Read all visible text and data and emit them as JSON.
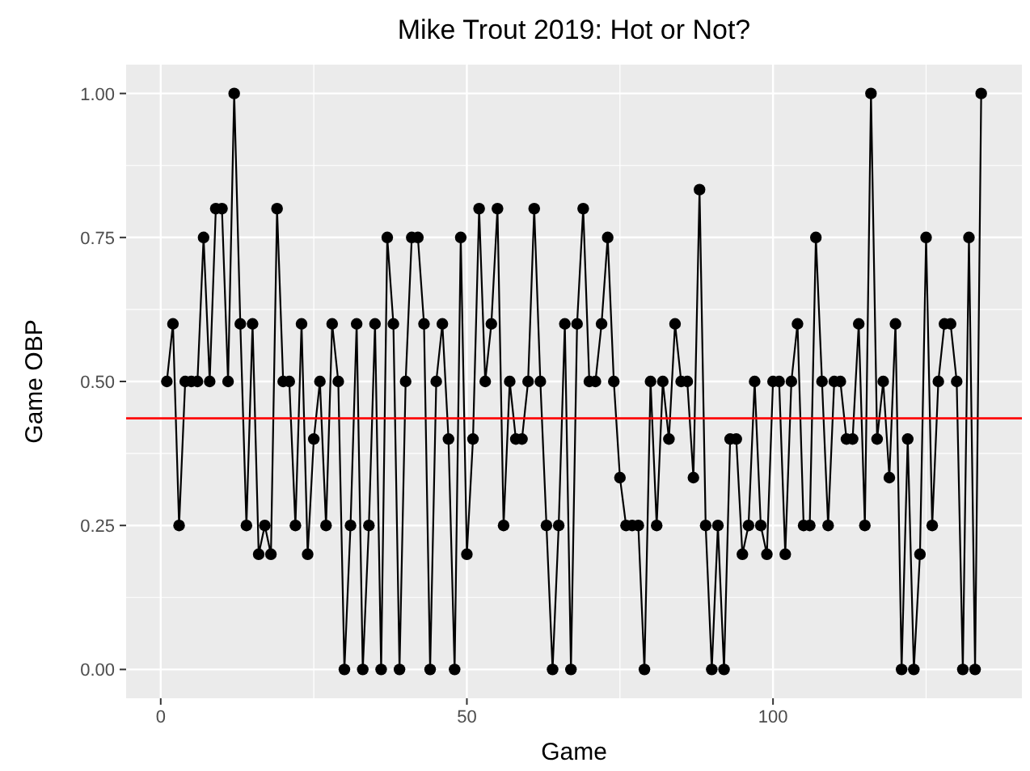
{
  "chart_data": {
    "type": "line",
    "title": "Mike Trout 2019: Hot or Not?",
    "xlabel": "Game",
    "ylabel": "Game OBP",
    "x": [
      1,
      2,
      3,
      4,
      5,
      6,
      7,
      8,
      9,
      10,
      11,
      12,
      13,
      14,
      15,
      16,
      17,
      18,
      19,
      20,
      21,
      22,
      23,
      24,
      25,
      26,
      27,
      28,
      29,
      30,
      31,
      32,
      33,
      34,
      35,
      36,
      37,
      38,
      39,
      40,
      41,
      42,
      43,
      44,
      45,
      46,
      47,
      48,
      49,
      50,
      51,
      52,
      53,
      54,
      55,
      56,
      57,
      58,
      59,
      60,
      61,
      62,
      63,
      64,
      65,
      66,
      67,
      68,
      69,
      70,
      71,
      72,
      73,
      74,
      75,
      76,
      77,
      78,
      79,
      80,
      81,
      82,
      83,
      84,
      85,
      86,
      87,
      88,
      89,
      90,
      91,
      92,
      93,
      94,
      95,
      96,
      97,
      98,
      99,
      100,
      101,
      102,
      103,
      104,
      105,
      106,
      107,
      108,
      109,
      110,
      111,
      112,
      113,
      114,
      115,
      116,
      117,
      118,
      119,
      120,
      121,
      122,
      123,
      124,
      125,
      126,
      127,
      128,
      129,
      130,
      131,
      132,
      133,
      134
    ],
    "series": [
      {
        "color": "#000000",
        "values": [
          0.5,
          0.6,
          0.25,
          0.5,
          0.5,
          0.5,
          0.75,
          0.5,
          0.8,
          0.8,
          0.5,
          1,
          0.6,
          0.25,
          0.6,
          0.2,
          0.25,
          0.2,
          0.8,
          0.5,
          0.5,
          0.25,
          0.6,
          0.2,
          0.4,
          0.5,
          0.25,
          0.6,
          0.5,
          0,
          0.25,
          0.6,
          0,
          0.25,
          0.6,
          0,
          0.75,
          0.6,
          0,
          0.5,
          0.75,
          0.75,
          0.6,
          0,
          0.5,
          0.6,
          0.4,
          0,
          0.75,
          0.2,
          0.4,
          0.8,
          0.5,
          0.6,
          0.8,
          0.25,
          0.5,
          0.4,
          0.4,
          0.5,
          0.8,
          0.5,
          0.25,
          0,
          0.25,
          0.6,
          0,
          0.6,
          0.8,
          0.5,
          0.5,
          0.6,
          0.75,
          0.5,
          0.333,
          0.25,
          0.25,
          0.25,
          0,
          0.5,
          0.25,
          0.5,
          0.4,
          0.6,
          0.5,
          0.5,
          0.333,
          0.833,
          0.25,
          0,
          0.25,
          0,
          0.4,
          0.4,
          0.2,
          0.25,
          0.5,
          0.25,
          0.2,
          0.5,
          0.5,
          0.2,
          0.5,
          0.6,
          0.25,
          0.25,
          0.75,
          0.5,
          0.25,
          0.5,
          0.5,
          0.4,
          0.4,
          0.6,
          0.25,
          1,
          0.4,
          0.5,
          0.333,
          0.6,
          0,
          0.4,
          0,
          0.2,
          0.75,
          0.25,
          0.5,
          0.6,
          0.6,
          0.5,
          0,
          0.75,
          0,
          1
        ]
      }
    ],
    "xlim": [
      -5.65,
      140.65
    ],
    "xticks": [
      0,
      50,
      100
    ],
    "ylim": [
      -0.05,
      1.05
    ],
    "yticks": [
      {
        "value": 0,
        "label": "0.00"
      },
      {
        "value": 0.25,
        "label": "0.25"
      },
      {
        "value": 0.5,
        "label": "0.50"
      },
      {
        "value": 0.75,
        "label": "0.75"
      },
      {
        "value": 1,
        "label": "1.00"
      }
    ],
    "ref_lines": [
      {
        "axis": "y",
        "value": 0.436,
        "color": "#ff0000"
      }
    ],
    "grid": true,
    "marker": "circle",
    "line_style": "solid"
  }
}
